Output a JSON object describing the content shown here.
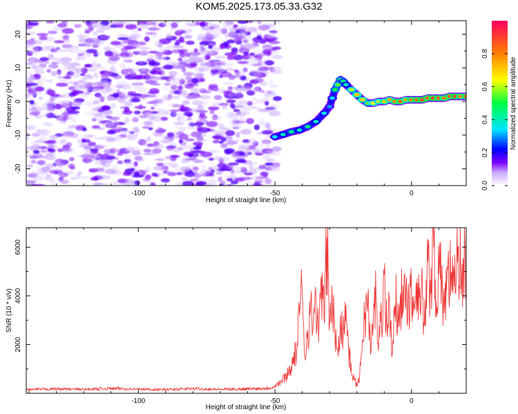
{
  "title": "KOM5.2025.173.05.33.G32",
  "chart_data": [
    {
      "type": "heatmap",
      "xlabel": "Height of straight line (km)",
      "ylabel": "Frequency (Hz)",
      "xlim": [
        -141,
        20
      ],
      "ylim": [
        -25,
        24
      ],
      "xticks": [
        -100,
        -50,
        0
      ],
      "yticks": [
        -20,
        -10,
        0,
        10,
        20
      ],
      "colorbar": {
        "label": "Normalized spectral amplitude",
        "range": [
          0,
          1
        ],
        "ticks": [
          "0.0",
          "0.2",
          "0.4",
          "0.6",
          "0.8"
        ],
        "colors": [
          "#ffffff",
          "#b388ff",
          "#7a00ff",
          "#0000ff",
          "#00e5ff",
          "#00ff40",
          "#ffff00",
          "#ff8000",
          "#ff0040"
        ]
      },
      "noise_region": {
        "x": [
          -141,
          -49
        ],
        "y": [
          -25,
          24
        ],
        "amplitude": [
          0.0,
          0.3
        ]
      },
      "signal_ridge": {
        "x": [
          -50,
          -47,
          -44,
          -41,
          -38,
          -35,
          -32,
          -30,
          -29,
          -28,
          -27,
          -26,
          -25,
          -24,
          -22,
          -20,
          -18,
          -16,
          -14,
          -12,
          -10,
          -8,
          -6,
          -4,
          -2,
          0,
          2,
          4,
          6,
          8,
          10,
          12,
          14,
          16,
          18,
          20
        ],
        "y": [
          -10.5,
          -9.8,
          -9.0,
          -8.5,
          -7.5,
          -6.0,
          -3.5,
          -1.5,
          1.0,
          3.5,
          5.0,
          6.5,
          6.0,
          5.0,
          3.5,
          2.0,
          0.5,
          -0.5,
          -0.5,
          0.0,
          0.0,
          0.5,
          0.0,
          0.0,
          0.5,
          0.5,
          0.5,
          0.5,
          1.0,
          1.0,
          1.0,
          1.0,
          1.5,
          1.5,
          1.5,
          1.5
        ],
        "amplitude": [
          0.35,
          0.4,
          0.45,
          0.4,
          0.45,
          0.4,
          0.35,
          0.3,
          0.35,
          0.5,
          0.55,
          0.5,
          0.45,
          0.4,
          0.6,
          0.7,
          0.7,
          0.55,
          0.65,
          0.6,
          0.7,
          0.75,
          0.8,
          0.85,
          0.75,
          0.8,
          0.85,
          0.9,
          0.85,
          0.9,
          0.85,
          0.8,
          0.85,
          0.9,
          0.8,
          0.85
        ]
      }
    },
    {
      "type": "line",
      "xlabel": "Height of straight line (km)",
      "ylabel": "SNR (10 * v/v)",
      "xlim": [
        -141,
        20
      ],
      "ylim": [
        0,
        6800
      ],
      "xticks": [
        -100,
        -50,
        0
      ],
      "yticks": [
        2000,
        4000,
        6000
      ],
      "series": [
        {
          "color": "#ee3333",
          "x": [
            -141,
            -130,
            -120,
            -110,
            -100,
            -90,
            -80,
            -70,
            -60,
            -55,
            -52,
            -50,
            -48,
            -46,
            -44,
            -42,
            -41,
            -40,
            -39,
            -38,
            -37,
            -36,
            -35,
            -34,
            -33,
            -32,
            -31,
            -30,
            -29,
            -28,
            -27,
            -26,
            -25,
            -24,
            -23,
            -22,
            -21,
            -20,
            -19,
            -18,
            -17,
            -16,
            -15,
            -14,
            -13,
            -12,
            -11,
            -10,
            -9,
            -8,
            -7,
            -6,
            -5,
            -4,
            -3,
            -2,
            -1,
            0,
            1,
            2,
            3,
            4,
            5,
            6,
            7,
            8,
            9,
            10,
            11,
            12,
            13,
            14,
            15,
            16,
            17,
            18,
            19,
            20
          ],
          "values": [
            150,
            180,
            160,
            200,
            170,
            150,
            190,
            160,
            180,
            200,
            220,
            300,
            450,
            700,
            1100,
            1800,
            3200,
            4300,
            1500,
            2600,
            3400,
            2800,
            4000,
            2100,
            4800,
            3000,
            6400,
            2800,
            3900,
            2200,
            1800,
            3200,
            2400,
            3600,
            1700,
            900,
            600,
            300,
            700,
            2200,
            3300,
            3900,
            1600,
            3000,
            4100,
            2000,
            3200,
            4900,
            2600,
            3600,
            1600,
            3600,
            3700,
            4100,
            3300,
            4400,
            3800,
            4200,
            3500,
            4700,
            4300,
            3900,
            2800,
            5400,
            4100,
            6800,
            3800,
            4900,
            4500,
            3300,
            5200,
            4600,
            5600,
            4100,
            6000,
            4900,
            5500,
            5000
          ]
        }
      ]
    }
  ]
}
